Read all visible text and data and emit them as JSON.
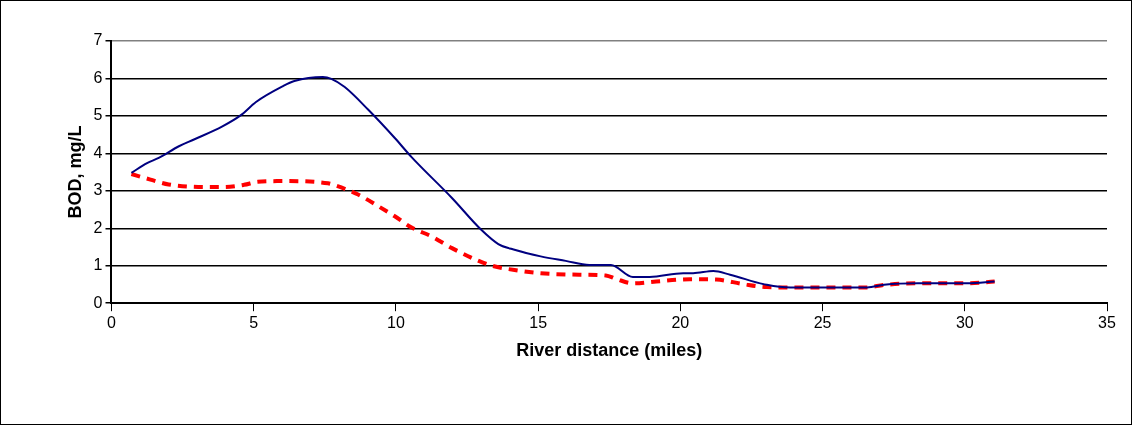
{
  "chart_data": {
    "type": "line",
    "xlabel": "River distance (miles)",
    "ylabel": "BOD, mg/L",
    "xlim": [
      0,
      35
    ],
    "xticks": [
      0,
      5,
      10,
      15,
      20,
      25,
      30,
      35
    ],
    "ylim": [
      0,
      7
    ],
    "yticks": [
      0,
      1,
      2,
      3,
      4,
      5,
      6,
      7
    ],
    "grid": "y",
    "legend": false,
    "marker": "none",
    "series": [
      {
        "color": "#000080",
        "line_style": "solid",
        "x": [
          0.7,
          1.25,
          1.66,
          2.37,
          2.9,
          3.9,
          4.55,
          5.08,
          6.02,
          6.43,
          7.43,
          7.73,
          8.2,
          9.02,
          9.96,
          10.55,
          11.97,
          13.0,
          13.6,
          14.2,
          15.09,
          15.97,
          16.8,
          17.56,
          18.33,
          18.92,
          20.1,
          20.45,
          21.16,
          21.75,
          23.04,
          23.87,
          26.57,
          27.16,
          28.34,
          30.1,
          31.05
        ],
        "values": [
          3.48,
          3.74,
          3.88,
          4.19,
          4.37,
          4.72,
          5.02,
          5.37,
          5.79,
          5.93,
          6.04,
          5.99,
          5.77,
          5.17,
          4.41,
          3.9,
          2.81,
          1.96,
          1.58,
          1.42,
          1.25,
          1.13,
          1.02,
          1.02,
          0.7,
          0.7,
          0.8,
          0.8,
          0.86,
          0.76,
          0.49,
          0.42,
          0.42,
          0.49,
          0.53,
          0.53,
          0.58
        ]
      },
      {
        "color": "#ff0000",
        "line_style": "dashed",
        "x": [
          0.7,
          1.37,
          2.01,
          3.37,
          3.95,
          4.66,
          5.14,
          6.02,
          7.61,
          7.85,
          8.67,
          9.38,
          9.96,
          10.55,
          11.26,
          11.97,
          12.91,
          13.38,
          14.32,
          15.09,
          16.44,
          17.38,
          17.74,
          18.33,
          19.15,
          20.33,
          21.27,
          22.21,
          23.04,
          24.0,
          26.5,
          27.2,
          28.3,
          30.1,
          31.05
        ],
        "values": [
          3.45,
          3.3,
          3.17,
          3.1,
          3.1,
          3.16,
          3.24,
          3.26,
          3.2,
          3.15,
          2.9,
          2.59,
          2.32,
          2.02,
          1.78,
          1.47,
          1.13,
          1.0,
          0.87,
          0.8,
          0.76,
          0.74,
          0.65,
          0.53,
          0.58,
          0.64,
          0.63,
          0.51,
          0.43,
          0.42,
          0.42,
          0.49,
          0.53,
          0.53,
          0.58
        ]
      }
    ]
  }
}
